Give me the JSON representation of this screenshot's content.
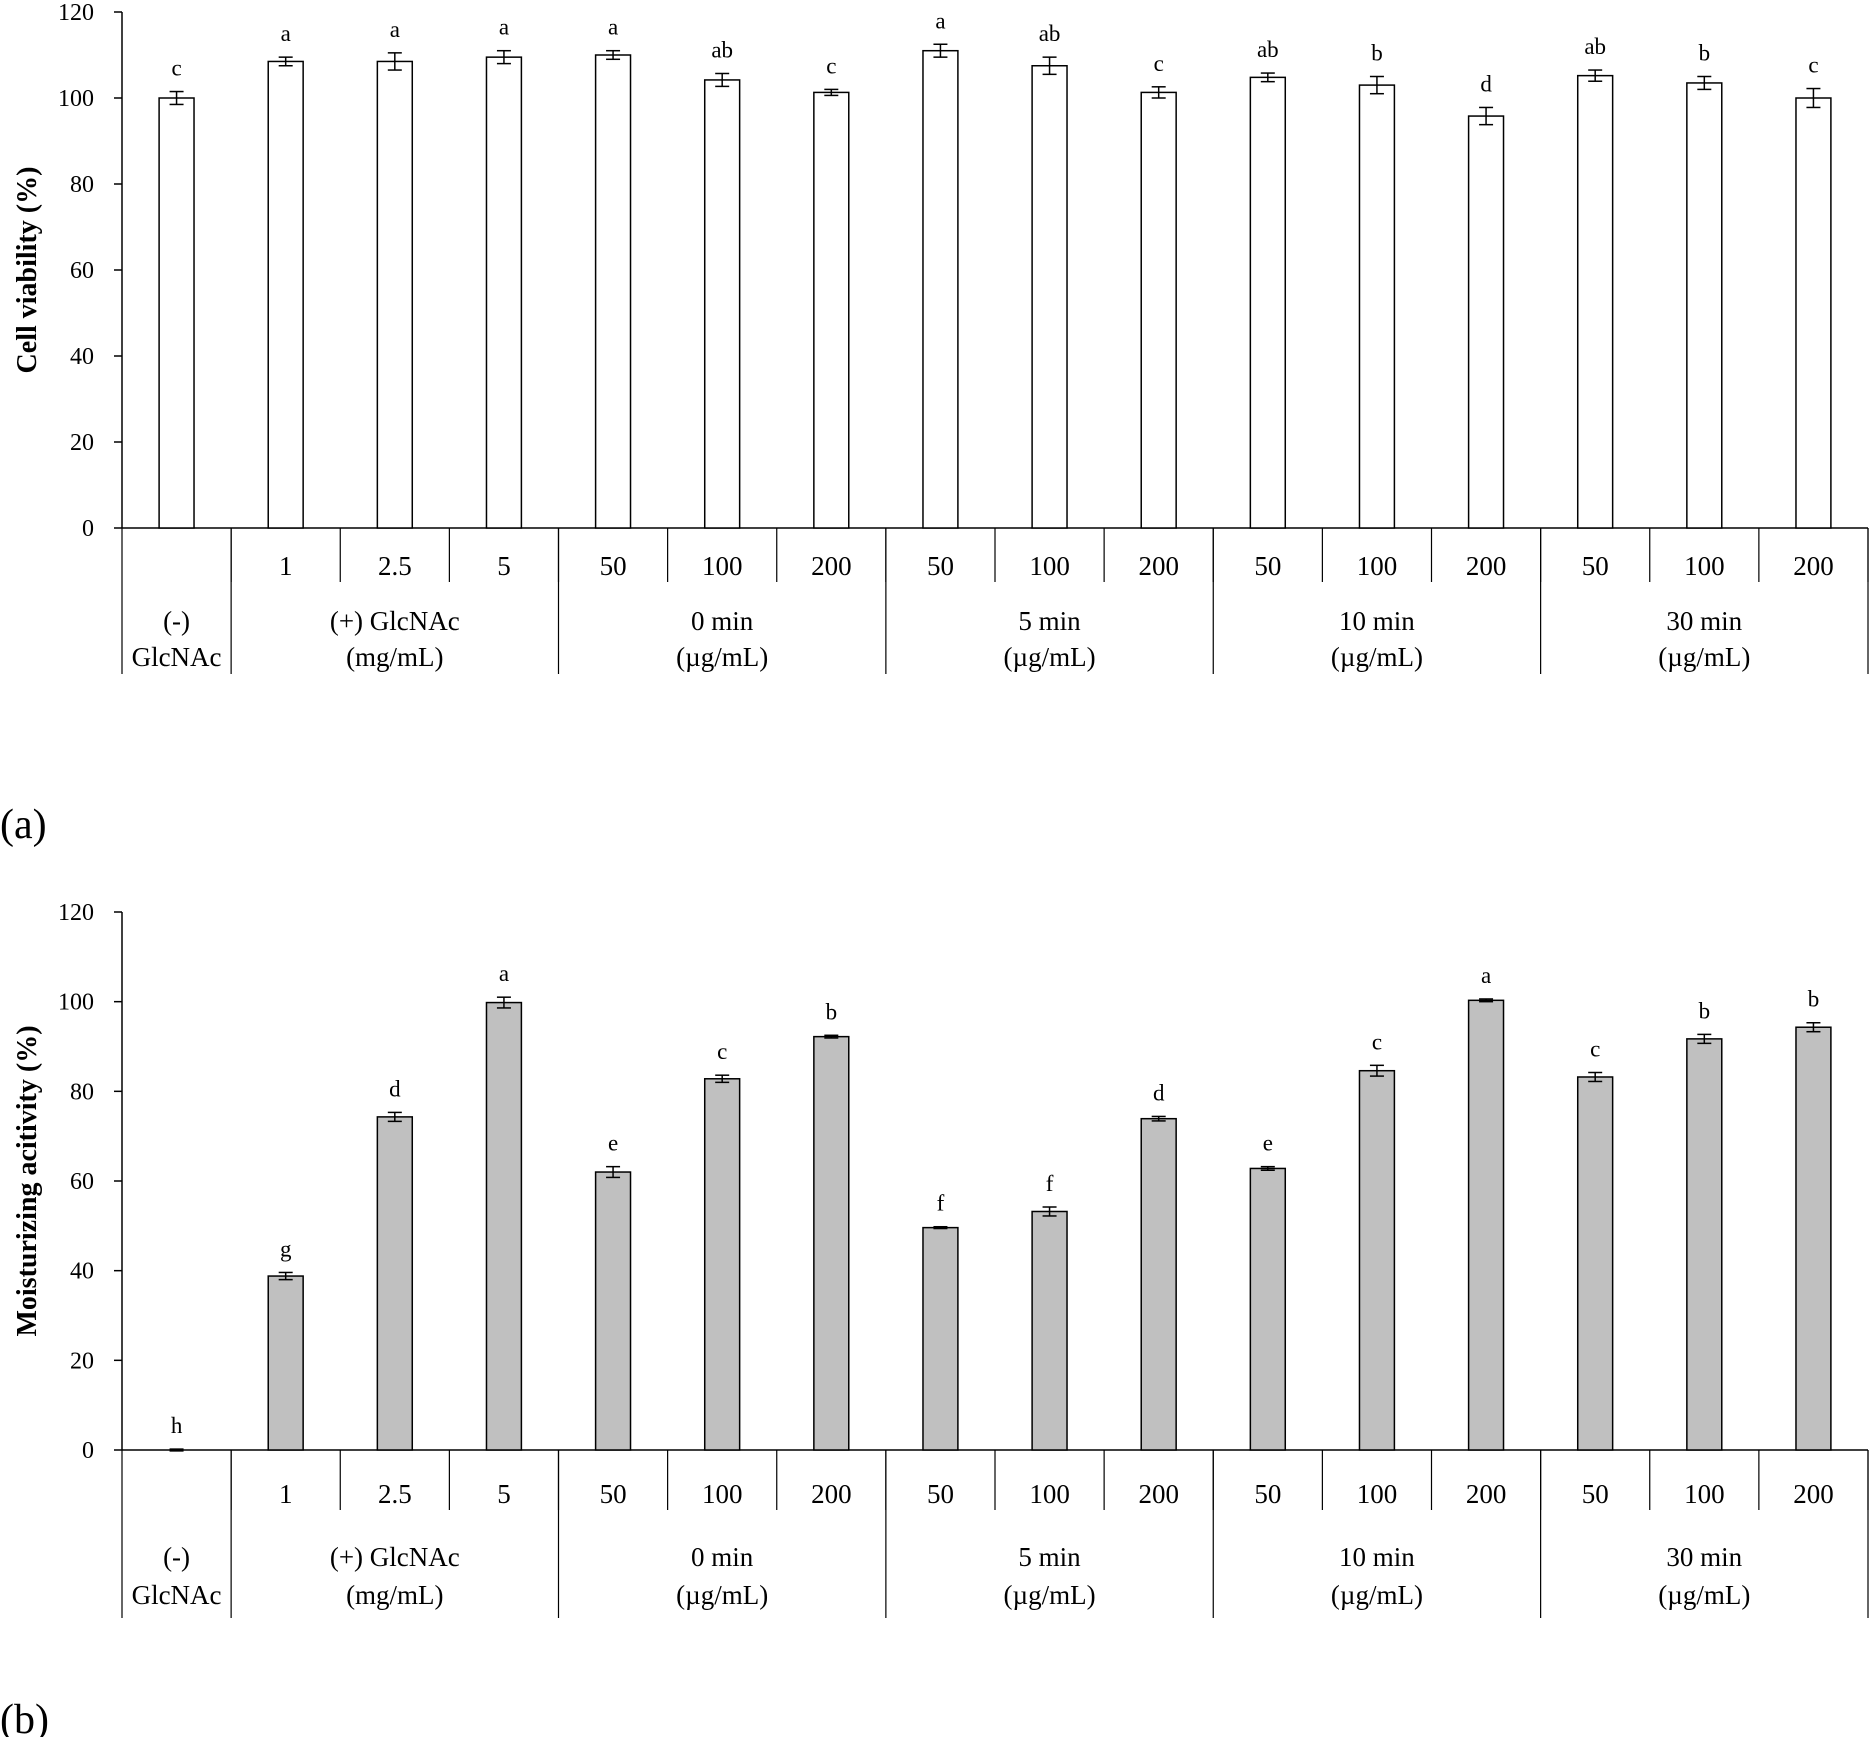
{
  "chart_data": [
    {
      "panel_label": "(a)",
      "type": "bar",
      "ylabel": "Cell viability (%)",
      "ylim": [
        0,
        120
      ],
      "yticks": [
        0,
        20,
        40,
        60,
        80,
        100,
        120
      ],
      "bar_fill": "#ffffff",
      "categories": [
        "",
        "1",
        "2.5",
        "5",
        "50",
        "100",
        "200",
        "50",
        "100",
        "200",
        "50",
        "100",
        "200",
        "50",
        "100",
        "200"
      ],
      "values": [
        100,
        108.5,
        108.5,
        109.5,
        110,
        104.2,
        101.3,
        111,
        107.5,
        101.3,
        104.8,
        103,
        95.8,
        105.2,
        103.5,
        100
      ],
      "errors": [
        1.5,
        1.0,
        2.0,
        1.5,
        1.0,
        1.5,
        0.7,
        1.5,
        2.0,
        1.3,
        1.0,
        2.0,
        2.0,
        1.3,
        1.5,
        2.2
      ],
      "significance": [
        "c",
        "a",
        "a",
        "a",
        "a",
        "ab",
        "c",
        "a",
        "ab",
        "c",
        "ab",
        "b",
        "d",
        "ab",
        "b",
        "c"
      ],
      "groups": [
        {
          "lines": [
            "(-)",
            "GlcNAc"
          ],
          "span": 1
        },
        {
          "lines": [
            "(+) GlcNAc",
            "(mg/mL)"
          ],
          "span": 3
        },
        {
          "lines": [
            "0 min",
            "(µg/mL)"
          ],
          "span": 3
        },
        {
          "lines": [
            "5 min",
            "(µg/mL)"
          ],
          "span": 3
        },
        {
          "lines": [
            "10 min",
            "(µg/mL)"
          ],
          "span": 3
        },
        {
          "lines": [
            "30 min",
            "(µg/mL)"
          ],
          "span": 3
        }
      ]
    },
    {
      "panel_label": "(b)",
      "type": "bar",
      "ylabel": "Moisturizing acitivity (%)",
      "ylim": [
        0,
        120
      ],
      "yticks": [
        0,
        20,
        40,
        60,
        80,
        100,
        120
      ],
      "bar_fill": "#c0c0c0",
      "categories": [
        "",
        "1",
        "2.5",
        "5",
        "50",
        "100",
        "200",
        "50",
        "100",
        "200",
        "50",
        "100",
        "200",
        "50",
        "100",
        "200"
      ],
      "values": [
        0,
        38.8,
        74.3,
        99.8,
        62,
        82.8,
        92.2,
        49.6,
        53.2,
        73.9,
        62.8,
        84.6,
        100.3,
        83.2,
        91.7,
        94.3
      ],
      "errors": [
        0.2,
        0.8,
        1.0,
        1.2,
        1.2,
        0.8,
        0.3,
        0.2,
        1.0,
        0.5,
        0.4,
        1.2,
        0.3,
        1.0,
        1.0,
        1.0
      ],
      "significance": [
        "h",
        "g",
        "d",
        "a",
        "e",
        "c",
        "b",
        "f",
        "f",
        "d",
        "e",
        "c",
        "a",
        "c",
        "b",
        "b"
      ],
      "groups": [
        {
          "lines": [
            "(-)",
            "GlcNAc"
          ],
          "span": 1
        },
        {
          "lines": [
            "(+) GlcNAc",
            "(mg/mL)"
          ],
          "span": 3
        },
        {
          "lines": [
            "0 min",
            "(µg/mL)"
          ],
          "span": 3
        },
        {
          "lines": [
            "5 min",
            "(µg/mL)"
          ],
          "span": 3
        },
        {
          "lines": [
            "10 min",
            "(µg/mL)"
          ],
          "span": 3
        },
        {
          "lines": [
            "30 min",
            "(µg/mL)"
          ],
          "span": 3
        }
      ]
    }
  ]
}
